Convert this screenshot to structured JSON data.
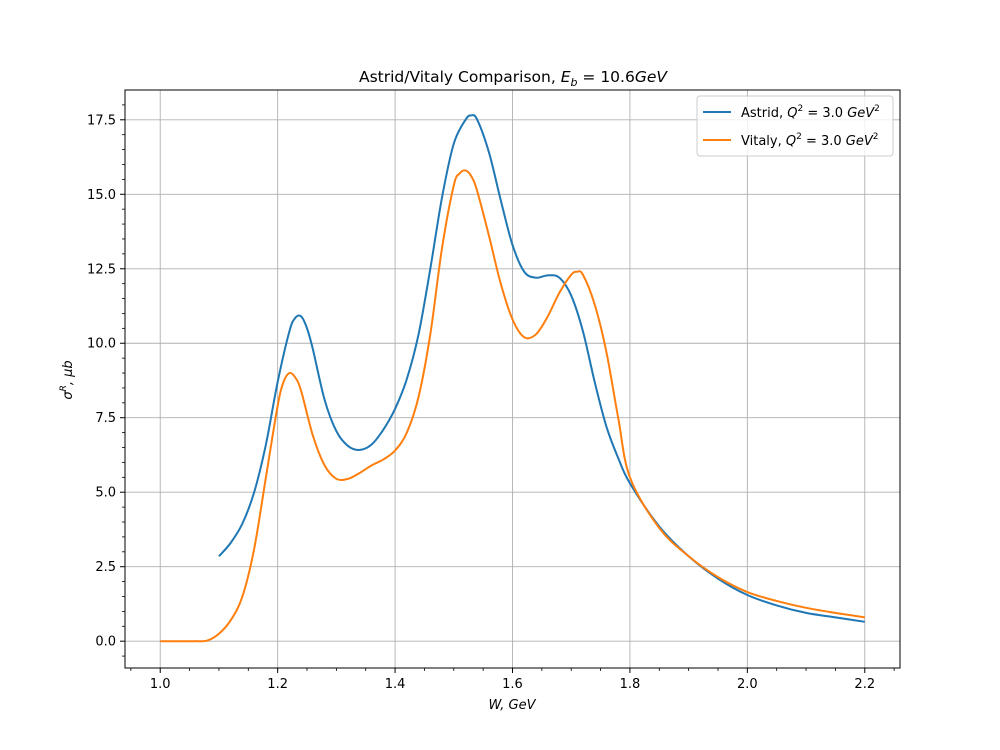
{
  "chart_data": {
    "type": "line",
    "title_prefix": "Astrid/Vitaly Comparison, ",
    "title_math_base": "E",
    "title_math_sub": "b",
    "title_math_rest": " = 10.6",
    "title_math_unit": "GeV",
    "xlabel": "W, GeV",
    "ylabel_base": "σ",
    "ylabel_sup": "R",
    "ylabel_rest": ", μb",
    "xlim": [
      0.94,
      2.26
    ],
    "ylim": [
      -0.9,
      18.5
    ],
    "xticks": [
      1.0,
      1.2,
      1.4,
      1.6,
      1.8,
      2.0,
      2.2
    ],
    "xtick_labels": [
      "1.0",
      "1.2",
      "1.4",
      "1.6",
      "1.8",
      "2.0",
      "2.2"
    ],
    "yticks": [
      0.0,
      2.5,
      5.0,
      7.5,
      10.0,
      12.5,
      15.0,
      17.5
    ],
    "ytick_labels": [
      "0.0",
      "2.5",
      "5.0",
      "7.5",
      "10.0",
      "12.5",
      "15.0",
      "17.5"
    ],
    "grid": true,
    "legend_position": "top-right",
    "series": [
      {
        "name_prefix": "Astrid, ",
        "name_math": "Q",
        "name_sup": "2",
        "name_rest": " = 3.0 ",
        "name_unit": "GeV",
        "name_unit_sup": "2",
        "color": "#1f77b4",
        "x": [
          1.1,
          1.12,
          1.14,
          1.16,
          1.18,
          1.2,
          1.22,
          1.23,
          1.24,
          1.25,
          1.26,
          1.28,
          1.3,
          1.32,
          1.34,
          1.36,
          1.38,
          1.4,
          1.42,
          1.44,
          1.46,
          1.48,
          1.5,
          1.52,
          1.53,
          1.54,
          1.56,
          1.58,
          1.6,
          1.62,
          1.64,
          1.66,
          1.68,
          1.7,
          1.72,
          1.74,
          1.76,
          1.78,
          1.8,
          1.85,
          1.9,
          1.95,
          2.0,
          2.05,
          2.1,
          2.15,
          2.2
        ],
        "y": [
          2.85,
          3.3,
          3.95,
          5.0,
          6.6,
          8.7,
          10.4,
          10.85,
          10.9,
          10.5,
          9.8,
          8.1,
          7.05,
          6.55,
          6.42,
          6.6,
          7.1,
          7.8,
          8.8,
          10.3,
          12.5,
          14.9,
          16.7,
          17.5,
          17.65,
          17.5,
          16.4,
          14.8,
          13.3,
          12.4,
          12.2,
          12.28,
          12.2,
          11.6,
          10.4,
          8.7,
          7.2,
          6.15,
          5.3,
          3.85,
          2.85,
          2.1,
          1.55,
          1.2,
          0.95,
          0.8,
          0.65
        ]
      },
      {
        "name_prefix": "Vitaly, ",
        "name_math": "Q",
        "name_sup": "2",
        "name_rest": " = 3.0 ",
        "name_unit": "GeV",
        "name_unit_sup": "2",
        "color": "#ff7f0e",
        "x": [
          1.0,
          1.02,
          1.04,
          1.06,
          1.08,
          1.1,
          1.12,
          1.14,
          1.16,
          1.18,
          1.2,
          1.21,
          1.22,
          1.23,
          1.24,
          1.26,
          1.28,
          1.3,
          1.32,
          1.34,
          1.36,
          1.38,
          1.4,
          1.42,
          1.44,
          1.46,
          1.48,
          1.5,
          1.51,
          1.52,
          1.53,
          1.54,
          1.56,
          1.58,
          1.6,
          1.62,
          1.64,
          1.66,
          1.68,
          1.7,
          1.71,
          1.72,
          1.74,
          1.76,
          1.78,
          1.8,
          1.85,
          1.9,
          1.95,
          2.0,
          2.05,
          2.1,
          2.15,
          2.2
        ],
        "y": [
          0.0,
          0.0,
          0.0,
          0.0,
          0.02,
          0.25,
          0.7,
          1.5,
          3.1,
          5.5,
          7.9,
          8.7,
          9.0,
          8.85,
          8.4,
          6.9,
          5.9,
          5.45,
          5.45,
          5.65,
          5.9,
          6.1,
          6.4,
          7.0,
          8.2,
          10.3,
          13.2,
          15.3,
          15.7,
          15.8,
          15.6,
          15.1,
          13.6,
          12.0,
          10.8,
          10.2,
          10.3,
          10.9,
          11.7,
          12.3,
          12.4,
          12.3,
          11.3,
          9.7,
          7.5,
          5.5,
          3.8,
          2.85,
          2.15,
          1.65,
          1.35,
          1.12,
          0.95,
          0.8
        ]
      }
    ]
  }
}
